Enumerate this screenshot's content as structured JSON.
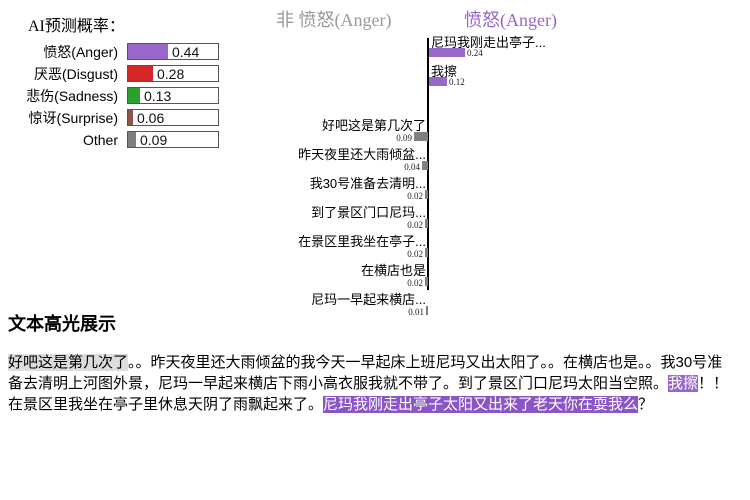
{
  "probabilities": {
    "title": "AI预测概率：",
    "items": [
      {
        "label": "愤怒(Anger)",
        "value": "0.44",
        "fraction": 0.44,
        "color": "#9966cc"
      },
      {
        "label": "厌恶(Disgust)",
        "value": "0.28",
        "fraction": 0.28,
        "color": "#d62728"
      },
      {
        "label": "悲伤(Sadness)",
        "value": "0.13",
        "fraction": 0.13,
        "color": "#2ca02c"
      },
      {
        "label": "惊讶(Surprise)",
        "value": "0.06",
        "fraction": 0.06,
        "color": "#8c564b"
      },
      {
        "label": "Other",
        "value": "0.09",
        "fraction": 0.09,
        "color": "#7f7f7f"
      }
    ]
  },
  "sentence_chart": {
    "negative_heading": "非 愤怒(Anger)",
    "positive_heading": "愤怒(Anger)",
    "positive_color": "#9966cc",
    "negative_color": "#808080",
    "rows": [
      {
        "text": "尼玛我刚走出亭子...",
        "value": "0.24",
        "weight": 0.24,
        "side": "right"
      },
      {
        "text": "我擦",
        "value": "0.12",
        "weight": 0.12,
        "side": "right"
      },
      {
        "text": "好吧这是第几次了",
        "value": "0.09",
        "weight": 0.09,
        "side": "left"
      },
      {
        "text": "昨天夜里还大雨倾盆...",
        "value": "0.04",
        "weight": 0.04,
        "side": "left"
      },
      {
        "text": "我30号准备去清明...",
        "value": "0.02",
        "weight": 0.02,
        "side": "left"
      },
      {
        "text": "到了景区门口尼玛...",
        "value": "0.02",
        "weight": 0.02,
        "side": "left"
      },
      {
        "text": "在景区里我坐在亭子...",
        "value": "0.02",
        "weight": 0.02,
        "side": "left"
      },
      {
        "text": "在横店也是",
        "value": "0.02",
        "weight": 0.02,
        "side": "left"
      },
      {
        "text": "尼玛一早起来横店...",
        "value": "0.01",
        "weight": 0.01,
        "side": "left"
      }
    ]
  },
  "highlight": {
    "title": "文本高光展示",
    "segments": [
      {
        "text": "好吧这是第几次了",
        "style": "gray"
      },
      {
        "text": "。。昨天夜里还大雨倾盆的我今天一早起床上班尼玛又出太阳了。。在横店也是。。我30号准备去清明上河图外景，尼玛一早起来横店下雨小高衣服我就不带了。到了景区门口尼玛太阳当空照。",
        "style": "none"
      },
      {
        "text": "我擦",
        "style": "purple"
      },
      {
        "text": "！！在景区里我坐在亭子里休息天阴了雨飘起来了。",
        "style": "none"
      },
      {
        "text": "尼玛我刚走出亭子太阳又出来了老天你在耍我么",
        "style": "purple-dark"
      },
      {
        "text": "？",
        "style": "none"
      }
    ]
  }
}
